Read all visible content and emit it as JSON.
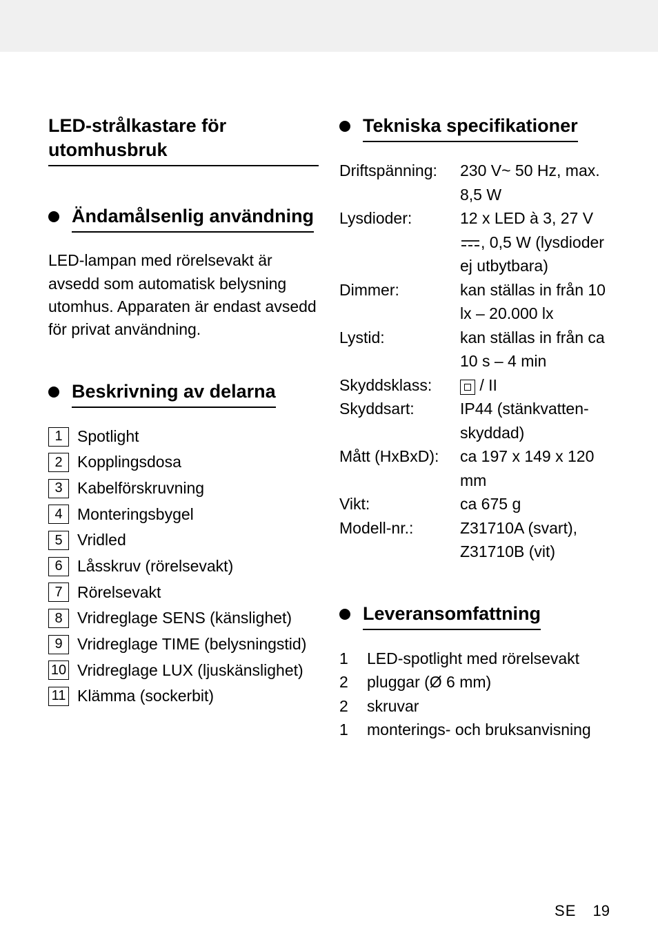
{
  "mainTitle": "LED-strålkastare för utomhusbruk",
  "section1": {
    "title": "Ändamålsenlig användning",
    "body": "LED-lampan med rörelsevakt är avsedd som automatisk belysning utomhus. Apparaten är endast avsedd för privat användning."
  },
  "section2": {
    "title": "Beskrivning av delarna",
    "parts": [
      {
        "n": "1",
        "label": "Spotlight"
      },
      {
        "n": "2",
        "label": "Kopplingsdosa"
      },
      {
        "n": "3",
        "label": "Kabelförskruvning"
      },
      {
        "n": "4",
        "label": "Monteringsbygel"
      },
      {
        "n": "5",
        "label": "Vridled"
      },
      {
        "n": "6",
        "label": "Låsskruv (rörelsevakt)"
      },
      {
        "n": "7",
        "label": "Rörelsevakt"
      },
      {
        "n": "8",
        "label": "Vridreglage SENS (känslighet)"
      },
      {
        "n": "9",
        "label": "Vridreglage TIME (belysningstid)"
      },
      {
        "n": "10",
        "label": "Vridreglage LUX (ljuskänslighet)"
      },
      {
        "n": "11",
        "label": "Klämma (sockerbit)"
      }
    ]
  },
  "section3": {
    "title": "Tekniska specifikationer",
    "specs": [
      {
        "label": "Driftspänning:",
        "value": "230 V~ 50 Hz, max. 8,5 W",
        "type": "plain"
      },
      {
        "label": "Lysdioder:",
        "value": "12 x LED à 3, 27 V {DC}, 0,5 W (lysdioder ej utbytbara)",
        "type": "dc"
      },
      {
        "label": "Dimmer:",
        "value": "kan ställas in från 10 lx – 20.000 lx",
        "type": "plain"
      },
      {
        "label": "Lystid:",
        "value": "kan ställas in från ca 10 s – 4 min",
        "type": "plain"
      },
      {
        "label": "Skyddsklass:",
        "value": " / II",
        "type": "class2"
      },
      {
        "label": "Skyddsart:",
        "value": "IP44 (stänkvatten­skyddad)",
        "type": "plain"
      },
      {
        "label": "Mått (HxBxD):",
        "value": "ca 197 x 149 x 120 mm",
        "type": "plain"
      },
      {
        "label": "Vikt:",
        "value": "ca 675 g",
        "type": "plain"
      },
      {
        "label": "Modell-nr.:",
        "value": "Z31710A (svart), Z31710B (vit)",
        "type": "plain"
      }
    ]
  },
  "section4": {
    "title": "Leveransomfattning",
    "items": [
      {
        "qty": "1",
        "label": "LED-spotlight med rörelsevakt"
      },
      {
        "qty": "2",
        "label": "pluggar (Ø 6 mm)"
      },
      {
        "qty": "2",
        "label": "skruvar"
      },
      {
        "qty": "1",
        "label": "monterings- och bruksanvisning"
      }
    ]
  },
  "footer": {
    "country": "SE",
    "page": "19"
  }
}
